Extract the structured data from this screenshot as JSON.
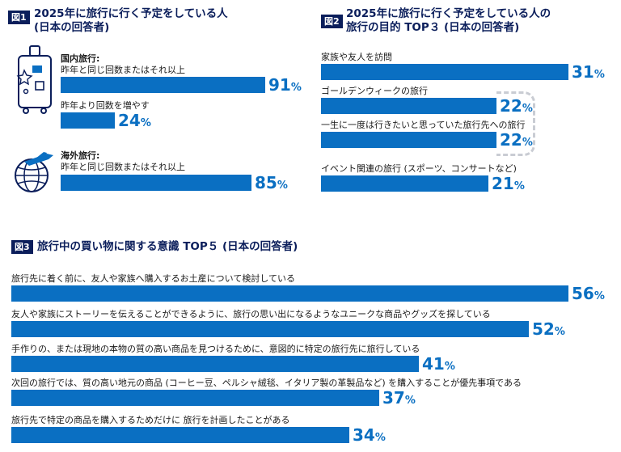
{
  "chart_data": [
    {
      "type": "bar",
      "badge": "図1",
      "title": "2025年に旅行に行く予定をしている人",
      "subtitle": "(日本の回答者)",
      "unit": "%",
      "groups": [
        {
          "label": "国内旅行:",
          "icon": "suitcase-icon",
          "items": [
            {
              "label": "昨年と同じ回数またはそれ以上",
              "value": 91
            },
            {
              "label": "昨年より回数を増やす",
              "value": 24
            }
          ]
        },
        {
          "label": "海外旅行:",
          "icon": "globe-airplane-icon",
          "items": [
            {
              "label": "昨年と同じ回数またはそれ以上",
              "value": 85
            }
          ]
        }
      ]
    },
    {
      "type": "bar",
      "badge": "図2",
      "title": "2025年に旅行に行く予定をしている人の",
      "subtitle": "旅行の目的 TOP３ (日本の回答者)",
      "unit": "%",
      "categories": [
        "家族や友人を訪問",
        "ゴールデンウィークの旅行",
        "一生に一度は行きたいと思っていた旅行先への旅行",
        "イベント関連の旅行 (スポーツ、コンサートなど)"
      ],
      "values": [
        31,
        22,
        22,
        21
      ]
    },
    {
      "type": "bar",
      "badge": "図3",
      "title": "旅行中の買い物に関する意識 TOP５ (日本の回答者)",
      "unit": "%",
      "categories": [
        "旅行先に着く前に、友人や家族へ購入するお土産について検討している",
        "友人や家族にストーリーを伝えることができるように、旅行の思い出になるようなユニークな商品やグッズを探している",
        "手作りの、または現地の本物の質の高い商品を見つけるために、意図的に特定の旅行先に旅行している",
        "次回の旅行では、質の高い地元の商品 (コーヒー豆、ペルシャ絨毯、イタリア製の革製品など) を購入することが優先事項である",
        "旅行先で特定の商品を購入するためだけに 旅行を計画したことがある"
      ],
      "values": [
        56,
        52,
        41,
        37,
        34
      ]
    }
  ],
  "colors": {
    "bar": "#0a6fc2",
    "title": "#0b1e5b",
    "badge": "#0b1e5b",
    "dashed": "#c9ccd3"
  }
}
